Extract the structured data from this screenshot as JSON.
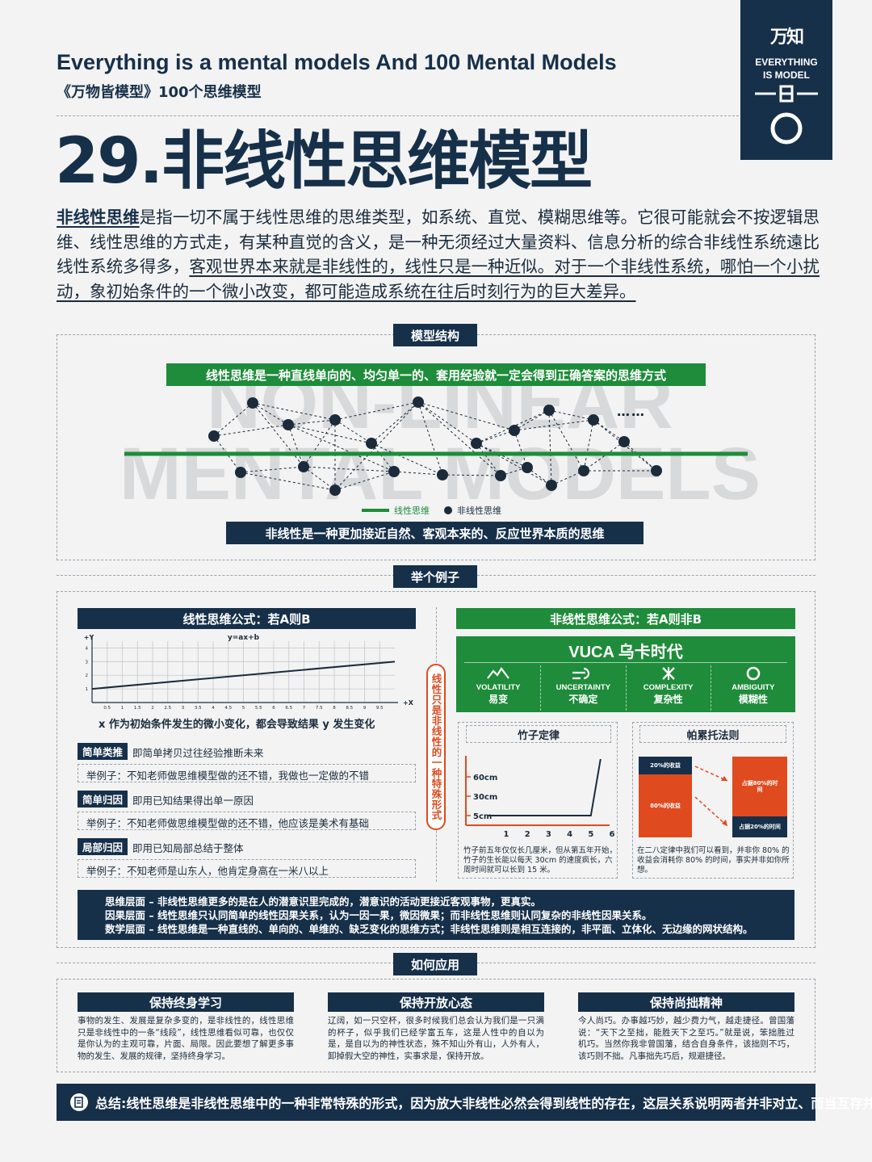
{
  "header": {
    "title_en": "Everything is a mental models And 100 Mental Models",
    "subtitle_cn": "《万物皆模型》100个思维模型",
    "logo_glyph": "万知",
    "logo_line1": "EVERYTHING",
    "logo_line2": "IS MODEL"
  },
  "main_title": "29.非线性思维模型",
  "intro": {
    "term": "非线性思维",
    "p1": "是指一切不属于线性思维的思维类型，如系统、直觉、模糊思维等。它很可能就会不按逻辑思维、线性思维的方式走，有某种直觉的含义，是一种无须经过大量资料、信息分析的综合非线性系统遠比线性系统多得多，",
    "u1": "客观世界本来就是非线性的，线性只是一种近似。",
    "u2": "对于一个非线性系统，哪怕一个小扰动，象初始条件的一个微小改变，都可能造成系统在往后时刻行为的巨大差异。"
  },
  "sections": {
    "structure": "模型结构",
    "example": "举个例子",
    "application": "如何应用"
  },
  "structure": {
    "top_banner": "线性思维是一种直线单向的、均匀单一的、套用经验就一定会得到正确答案的思维方式",
    "bottom_banner": "非线性是一种更加接近自然、客观本来的、反应世界本质的思维",
    "watermark1": "NON-LINEAR",
    "watermark2": "MENTAL MODELS",
    "ellipsis": "……",
    "legend_linear": "线性思维",
    "legend_nonlinear": "非线性思维",
    "line_color": "#1e8c3a",
    "node_color": "#1b2b3c"
  },
  "linear": {
    "header": "线性思维公式：若A则B",
    "chart_caption": "x 作为初始条件发生的微小变化，都会导致结果 y 发生变化",
    "items": [
      {
        "tag": "简单类推",
        "desc": "即简单拷贝过往经验推断未来",
        "example": "举例子：不知老师做思维模型做的还不错，我做也一定做的不错"
      },
      {
        "tag": "简单归因",
        "desc": "即用已知结果得出单一原因",
        "example": "举例子：不知老师做思维模型做的还不错，他应该是美术有基础"
      },
      {
        "tag": "局部归因",
        "desc": "即用已知局部总结于整体",
        "example": "举例子：不知老师是山东人，他肯定身高在一米八以上"
      }
    ]
  },
  "chart_data": [
    {
      "type": "line",
      "title": "y=ax+b",
      "xlabel": "+X",
      "ylabel": "+Y",
      "x": [
        0,
        10
      ],
      "series": [
        {
          "values": [
            1,
            3
          ]
        }
      ],
      "xticks": [
        "0.5",
        "1",
        "1.5",
        "2",
        "2.5",
        "3",
        "3.5",
        "4",
        "4.5",
        "5",
        "5.5",
        "6",
        "6.5",
        "7",
        "7.5",
        "8",
        "8.5",
        "9",
        "9.5"
      ],
      "yticks": [
        "1",
        "2",
        "3",
        "4"
      ],
      "ylim": [
        0,
        4.5
      ],
      "grid": true
    },
    {
      "type": "line",
      "title": "竹子定律",
      "x": [
        1,
        2,
        3,
        4,
        5,
        6
      ],
      "xticks": [
        "1",
        "2",
        "3",
        "4",
        "5",
        "6"
      ],
      "yticks": [
        "5cm",
        "30cm",
        "60cm"
      ],
      "series": [
        {
          "values": [
            3,
            3,
            3,
            3,
            3,
            1500
          ]
        }
      ]
    },
    {
      "type": "bar",
      "title": "帕累托法则",
      "left_labels": [
        "20%的收益",
        "80%的收益"
      ],
      "left_values": [
        20,
        80
      ],
      "right_labels": [
        "占据80%的时间",
        "占据20%的时间"
      ],
      "right_values": [
        80,
        20
      ]
    }
  ],
  "side_vertical": "线性只是非线性的一种特殊形式",
  "nonlinear": {
    "header": "非线性思维公式：若A则非B",
    "vuca_title": "VUCA 乌卡时代",
    "vuca": [
      {
        "en": "VOLATILITY",
        "cn": "易变",
        "icon": "mountain-icon"
      },
      {
        "en": "UNCERTAINTY",
        "cn": "不确定",
        "icon": "keyhole-icon"
      },
      {
        "en": "COMPLEXITY",
        "cn": "复杂性",
        "icon": "cross-icon"
      },
      {
        "en": "AMBIGUITY",
        "cn": "模糊性",
        "icon": "circle-icon"
      }
    ],
    "bamboo": {
      "title": "竹子定律",
      "note": "竹子前五年仅仅长几厘米，但从第五年开始，竹子的生长能以每天 30cm 的速度疯长，六周时间就可以长到 15 米。"
    },
    "pareto": {
      "title": "帕累托法则",
      "note": "在二八定律中我们可以看到，并非你 80% 的收益会消耗你 80% 的时间，事实并非如你所想。"
    }
  },
  "levels": [
    "思维层面 – 非线性思维更多的是在人的潜意识里完成的，潜意识的活动更接近客观事物，更真实。",
    "因果层面 – 线性思维只认同简单的线性因果关系，认为一因一果，微因微果；而非线性思维则认同复杂的非线性因果关系。",
    "数学层面 – 线性思维是一种直线的、单向的、单维的、缺乏变化的思维方式；非线性思维则是相互连接的，非平面、立体化、无边缘的网状结构。"
  ],
  "applications": [
    {
      "title": "保持终身学习",
      "text": "事物的发生、发展是复杂多变的，是非线性的，线性思维只是非线性中的一条“线段”，线性思维看似可靠，也仅仅是你认为的主观可靠，片面、局限。因此要想了解更多事物的发生、发展的规律，坚持终身学习。"
    },
    {
      "title": "保持开放心态",
      "text": "辽阔，如一只空杯，很多时候我们总会认为我们是一只满的杯子，似乎我们已经学富五车，这是人性中的自以为是，是自以为的神性状态，殊不知山外有山，人外有人，卸掉假大空的神性，实事求是，保持开放。"
    },
    {
      "title": "保持尚拙精神",
      "text": "今人尚巧。办事越巧妙，越少费力气，越走捷径。曾国藩说：“天下之至拙，能胜天下之至巧。”就是说，笨拙胜过机巧。当然你我非曾国藩，结合自身条件，该拙则不巧，该巧则不拙。凡事拙先巧后，规避捷径。"
    }
  ],
  "summary": "总结:线性思维是非线性思维中的一种非常特殊的形式，因为放大非线性必然会得到线性的存在，这层关系说明两者并非对立、而当互存并用。",
  "colors": {
    "navy": "#16304a",
    "green": "#1e8c3a",
    "orange": "#e04a1f"
  }
}
